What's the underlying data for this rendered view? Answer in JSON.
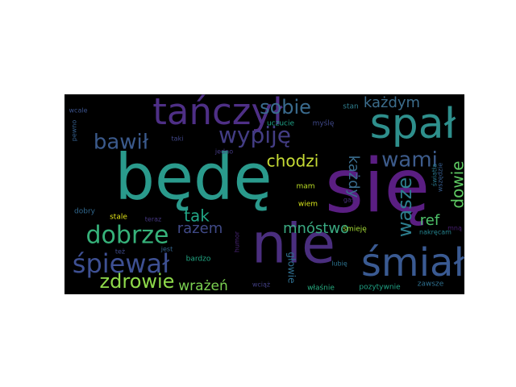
{
  "wordcloud": {
    "background": "#000000",
    "words": [
      {
        "text": "się",
        "color": "#5a1e82"
      },
      {
        "text": "będę",
        "color": "#2a9a8c"
      },
      {
        "text": "nie",
        "color": "#4a2e7e"
      },
      {
        "text": "spał",
        "color": "#2e8f8c"
      },
      {
        "text": "tańczył",
        "color": "#4e2f86"
      },
      {
        "text": "śmiał",
        "color": "#3a5a92"
      },
      {
        "text": "śpiewał",
        "color": "#3e5093"
      },
      {
        "text": "dobrze",
        "color": "#36b27a"
      },
      {
        "text": "zdrowie",
        "color": "#8ed94a"
      },
      {
        "text": "wypiję",
        "color": "#433d84"
      },
      {
        "text": "bawił",
        "color": "#3b5a8c"
      },
      {
        "text": "sobie",
        "color": "#3a6b8e"
      },
      {
        "text": "wami",
        "color": "#3d5c8c"
      },
      {
        "text": "wasze",
        "color": "#2d7e8e"
      },
      {
        "text": "każdym",
        "color": "#3c6d8c"
      },
      {
        "text": "chodzi",
        "color": "#c7dc35"
      },
      {
        "text": "każdy",
        "color": "#3a6d8e"
      },
      {
        "text": "dowie",
        "color": "#5ec962"
      },
      {
        "text": "tak",
        "color": "#21a585"
      },
      {
        "text": "razem",
        "color": "#404a87"
      },
      {
        "text": "mnóstwo",
        "color": "#3aaa82"
      },
      {
        "text": "ref",
        "color": "#4ec36a"
      },
      {
        "text": "wrażeń",
        "color": "#7bd151"
      },
      {
        "text": "głowie",
        "color": "#2f6e8e"
      },
      {
        "text": "uczucie",
        "color": "#1fa187"
      },
      {
        "text": "myślę",
        "color": "#3f4889"
      },
      {
        "text": "stan",
        "color": "#2f7e8e"
      },
      {
        "text": "wcale",
        "color": "#3b528b"
      },
      {
        "text": "pewno",
        "color": "#355f8d"
      },
      {
        "text": "taki",
        "color": "#404688"
      },
      {
        "text": "jedno",
        "color": "#443a83"
      },
      {
        "text": "mam",
        "color": "#bddf26"
      },
      {
        "text": "wiem",
        "color": "#d5e21a"
      },
      {
        "text": "gasi",
        "color": "#472c7a"
      },
      {
        "text": "światła",
        "color": "#2a788e"
      },
      {
        "text": "wszędzie",
        "color": "#365c8d"
      },
      {
        "text": "dobry",
        "color": "#31688e"
      },
      {
        "text": "stale",
        "color": "#e2e418"
      },
      {
        "text": "teraz",
        "color": "#453781"
      },
      {
        "text": "jest",
        "color": "#33638d"
      },
      {
        "text": "też",
        "color": "#3e4a89"
      },
      {
        "text": "bardzo",
        "color": "#22a884"
      },
      {
        "text": "humor",
        "color": "#482475"
      },
      {
        "text": "śmieję",
        "color": "#a5db36"
      },
      {
        "text": "lubię",
        "color": "#2c728e"
      },
      {
        "text": "mną",
        "color": "#481f70"
      },
      {
        "text": "nakręcam",
        "color": "#25848e"
      },
      {
        "text": "wciąż",
        "color": "#423f85"
      },
      {
        "text": "właśnie",
        "color": "#27ad81"
      },
      {
        "text": "pozytywnie",
        "color": "#20a486"
      },
      {
        "text": "zawsze",
        "color": "#2e6f8e"
      }
    ]
  }
}
